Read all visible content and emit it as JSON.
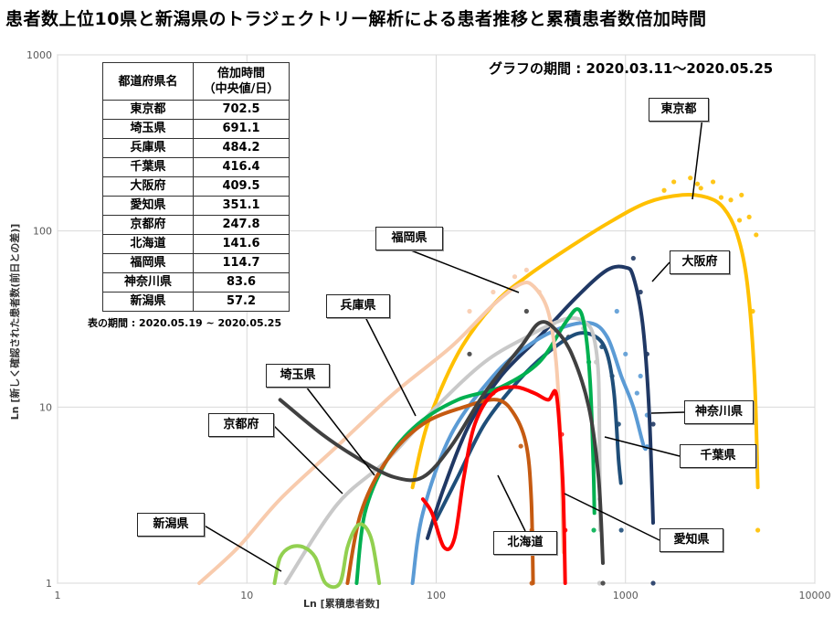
{
  "title": "患者数上位10県と新潟県のトラジェクトリー解析による患者推移と累積患者数倍加時間",
  "period_note": "グラフの期間 : 2020.03.11〜2020.05.25",
  "table": {
    "headers": [
      "都道府県名",
      "倍加時間\n（中央値/日）"
    ],
    "rows": [
      [
        "東京都",
        "702.5"
      ],
      [
        "埼玉県",
        "691.1"
      ],
      [
        "兵庫県",
        "484.2"
      ],
      [
        "千葉県",
        "416.4"
      ],
      [
        "大阪府",
        "409.5"
      ],
      [
        "愛知県",
        "351.1"
      ],
      [
        "京都府",
        "247.8"
      ],
      [
        "北海道",
        "141.6"
      ],
      [
        "福岡県",
        "114.7"
      ],
      [
        "神奈川県",
        "83.6"
      ],
      [
        "新潟県",
        "57.2"
      ]
    ],
    "note": "表の期間 : 2020.05.19 ~ 2020.05.25"
  },
  "chart_data": {
    "type": "line",
    "xlabel": "Ln [累積患者数]",
    "ylabel": "Ln [新しく確認された患者数(前日との差)]",
    "x_scale": "log",
    "y_scale": "log",
    "xlim": [
      1,
      10000
    ],
    "ylim": [
      1,
      1000
    ],
    "x_ticks": [
      "1",
      "10",
      "100",
      "1000",
      "10000"
    ],
    "y_ticks": [
      "1",
      "10",
      "100",
      "1000"
    ],
    "grid": true,
    "series": [
      {
        "name": "東京都",
        "color": "#ffc000",
        "trend": [
          [
            75,
            3.5
          ],
          [
            90,
            8
          ],
          [
            130,
            20
          ],
          [
            200,
            38
          ],
          [
            300,
            55
          ],
          [
            500,
            80
          ],
          [
            800,
            110
          ],
          [
            1300,
            145
          ],
          [
            2000,
            160
          ],
          [
            2700,
            155
          ],
          [
            3300,
            135
          ],
          [
            3900,
            95
          ],
          [
            4400,
            50
          ],
          [
            4800,
            15
          ],
          [
            5000,
            3.5
          ]
        ],
        "points": [
          [
            1800,
            190
          ],
          [
            2200,
            200
          ],
          [
            2500,
            175
          ],
          [
            2900,
            190
          ],
          [
            3200,
            155
          ],
          [
            3600,
            150
          ],
          [
            4100,
            160
          ],
          [
            4500,
            120
          ],
          [
            4900,
            95
          ],
          [
            4700,
            35
          ],
          [
            5000,
            2
          ],
          [
            4000,
            115
          ],
          [
            1600,
            170
          ],
          [
            2400,
            185
          ]
        ]
      },
      {
        "name": "大阪府",
        "color": "#203864",
        "trend": [
          [
            90,
            1.8
          ],
          [
            110,
            3.5
          ],
          [
            150,
            8
          ],
          [
            220,
            15
          ],
          [
            350,
            25
          ],
          [
            550,
            42
          ],
          [
            800,
            60
          ],
          [
            1000,
            62
          ],
          [
            1100,
            55
          ],
          [
            1230,
            30
          ],
          [
            1330,
            10
          ],
          [
            1400,
            2.2
          ]
        ],
        "points": [
          [
            1200,
            45
          ],
          [
            1300,
            20
          ],
          [
            1400,
            8
          ],
          [
            1100,
            70
          ],
          [
            1400,
            1
          ]
        ]
      },
      {
        "name": "神奈川県",
        "color": "#5b9bd5",
        "trend": [
          [
            75,
            1.0
          ],
          [
            85,
            2.5
          ],
          [
            120,
            7
          ],
          [
            200,
            15
          ],
          [
            300,
            22
          ],
          [
            450,
            28
          ],
          [
            650,
            30
          ],
          [
            800,
            25
          ],
          [
            950,
            15
          ],
          [
            1100,
            10
          ],
          [
            1250,
            6
          ],
          [
            1300,
            6
          ]
        ],
        "points": [
          [
            1000,
            20
          ],
          [
            1150,
            12
          ],
          [
            1200,
            15
          ],
          [
            1300,
            9
          ],
          [
            900,
            35
          ]
        ]
      },
      {
        "name": "千葉県",
        "color": "#1f4e79",
        "trend": [
          [
            100,
            2.3
          ],
          [
            130,
            4
          ],
          [
            180,
            8
          ],
          [
            270,
            14
          ],
          [
            380,
            20
          ],
          [
            550,
            26
          ],
          [
            700,
            25
          ],
          [
            800,
            20
          ],
          [
            870,
            12
          ],
          [
            920,
            5
          ],
          [
            945,
            3.7
          ]
        ],
        "points": [
          [
            850,
            15
          ],
          [
            920,
            8
          ],
          [
            950,
            2
          ],
          [
            750,
            22
          ]
        ]
      },
      {
        "name": "埼玉県",
        "color": "#c9c9c9",
        "trend": [
          [
            16,
            1.0
          ],
          [
            30,
            2.8
          ],
          [
            55,
            5
          ],
          [
            100,
            10
          ],
          [
            180,
            18
          ],
          [
            300,
            25
          ],
          [
            420,
            30
          ],
          [
            520,
            32
          ],
          [
            620,
            30
          ],
          [
            680,
            25
          ],
          [
            720,
            15
          ],
          [
            730,
            5
          ],
          [
            735,
            2
          ]
        ],
        "points": [
          [
            600,
            28
          ],
          [
            700,
            18
          ],
          [
            730,
            3
          ],
          [
            730,
            1
          ]
        ]
      },
      {
        "name": "兵庫県",
        "color": "#00b050",
        "trend": [
          [
            38,
            1.0
          ],
          [
            42,
            2.5
          ],
          [
            55,
            5
          ],
          [
            80,
            8
          ],
          [
            130,
            11
          ],
          [
            220,
            13
          ],
          [
            350,
            18
          ],
          [
            480,
            30
          ],
          [
            560,
            36
          ],
          [
            610,
            28
          ],
          [
            650,
            14
          ],
          [
            675,
            5
          ],
          [
            685,
            2.5
          ]
        ],
        "points": [
          [
            600,
            30
          ],
          [
            640,
            18
          ],
          [
            680,
            6
          ],
          [
            680,
            2
          ]
        ]
      },
      {
        "name": "福岡県",
        "color": "#f8cbad",
        "trend": [
          [
            5.6,
            1.0
          ],
          [
            9,
            1.6
          ],
          [
            15,
            3
          ],
          [
            30,
            6
          ],
          [
            60,
            12
          ],
          [
            120,
            22
          ],
          [
            200,
            38
          ],
          [
            280,
            50
          ],
          [
            330,
            48
          ],
          [
            390,
            35
          ],
          [
            430,
            18
          ],
          [
            455,
            6
          ],
          [
            470,
            1.5
          ]
        ],
        "points": [
          [
            260,
            55
          ],
          [
            300,
            60
          ],
          [
            350,
            45
          ],
          [
            420,
            30
          ],
          [
            200,
            45
          ],
          [
            150,
            35
          ]
        ]
      },
      {
        "name": "京都府",
        "color": "#c55a11",
        "trend": [
          [
            34,
            1.0
          ],
          [
            40,
            2.5
          ],
          [
            55,
            5
          ],
          [
            85,
            8
          ],
          [
            140,
            10
          ],
          [
            210,
            11
          ],
          [
            260,
            9
          ],
          [
            300,
            6
          ],
          [
            318,
            3
          ],
          [
            325,
            1.0
          ]
        ],
        "points": [
          [
            200,
            12
          ],
          [
            280,
            6
          ],
          [
            320,
            2
          ],
          [
            320,
            1
          ]
        ]
      },
      {
        "name": "北海道",
        "color": "#404040",
        "trend": [
          [
            15,
            11
          ],
          [
            25,
            7
          ],
          [
            40,
            5
          ],
          [
            60,
            4
          ],
          [
            85,
            4
          ],
          [
            120,
            6
          ],
          [
            180,
            12
          ],
          [
            280,
            22
          ],
          [
            350,
            30
          ],
          [
            420,
            28
          ],
          [
            520,
            20
          ],
          [
            640,
            10
          ],
          [
            720,
            4
          ],
          [
            760,
            1.3
          ]
        ],
        "points": [
          [
            150,
            20
          ],
          [
            300,
            35
          ],
          [
            500,
            25
          ],
          [
            700,
            5
          ],
          [
            760,
            1
          ]
        ]
      },
      {
        "name": "愛知県",
        "color": "#ff0000",
        "trend": [
          [
            85,
            3
          ],
          [
            95,
            2.5
          ],
          [
            110,
            1.6
          ],
          [
            125,
            1.8
          ],
          [
            140,
            4
          ],
          [
            160,
            8
          ],
          [
            200,
            12
          ],
          [
            260,
            13
          ],
          [
            330,
            12
          ],
          [
            390,
            11
          ],
          [
            430,
            12
          ],
          [
            455,
            6
          ],
          [
            470,
            3
          ],
          [
            480,
            1.0
          ]
        ],
        "points": [
          [
            420,
            12
          ],
          [
            460,
            7
          ],
          [
            480,
            2
          ]
        ]
      },
      {
        "name": "新潟県",
        "color": "#92d050",
        "trend": [
          [
            14,
            1.0
          ],
          [
            15,
            1.4
          ],
          [
            17,
            1.6
          ],
          [
            20,
            1.6
          ],
          [
            23,
            1.4
          ],
          [
            26,
            1.0
          ],
          [
            31,
            1.0
          ],
          [
            34,
            1.6
          ],
          [
            38,
            2.1
          ],
          [
            42,
            2.1
          ],
          [
            46,
            1.7
          ],
          [
            50,
            1.0
          ]
        ],
        "points": []
      }
    ],
    "annotations": [
      "東京都",
      "大阪府",
      "福岡県",
      "兵庫県",
      "埼玉県",
      "京都府",
      "新潟県",
      "北海道",
      "愛知県",
      "千葉県",
      "神奈川県"
    ]
  }
}
